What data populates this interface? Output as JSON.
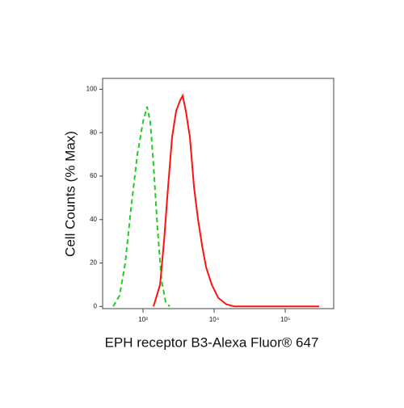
{
  "chart_data": {
    "type": "line",
    "x_label": "EPH receptor B3-Alexa Fluor® 647",
    "y_label": "Cell Counts (% Max)",
    "xscale": "log",
    "xlim": [
      270,
      480000
    ],
    "ylim": [
      -1,
      105
    ],
    "xticks": [
      {
        "value": 1000,
        "label": "10³"
      },
      {
        "value": 10000,
        "label": "10⁴"
      },
      {
        "value": 100000,
        "label": "10⁵"
      }
    ],
    "yticks": [
      0,
      20,
      40,
      60,
      80,
      100
    ],
    "grid": false,
    "series": [
      {
        "color": "#22cc22",
        "dash": true,
        "x": [
          380,
          468,
          562,
          676,
          832,
          1000,
          1140,
          1265,
          1405,
          1602,
          1825,
          2080,
          2370
        ],
        "values": [
          0,
          5,
          20,
          45,
          70,
          85,
          92,
          85,
          65,
          35,
          12,
          2,
          0
        ]
      },
      {
        "color": "#ff1111",
        "dash": false,
        "x": [
          1405,
          1733,
          1974,
          2250,
          2565,
          2924,
          3333,
          3605,
          4000,
          4560,
          5200,
          5930,
          6760,
          7700,
          9250,
          11400,
          14800,
          19230,
          300000
        ],
        "values": [
          0,
          10,
          30,
          55,
          78,
          90,
          95,
          97,
          90,
          78,
          55,
          40,
          28,
          18,
          10,
          4,
          1,
          0,
          0
        ]
      }
    ]
  }
}
